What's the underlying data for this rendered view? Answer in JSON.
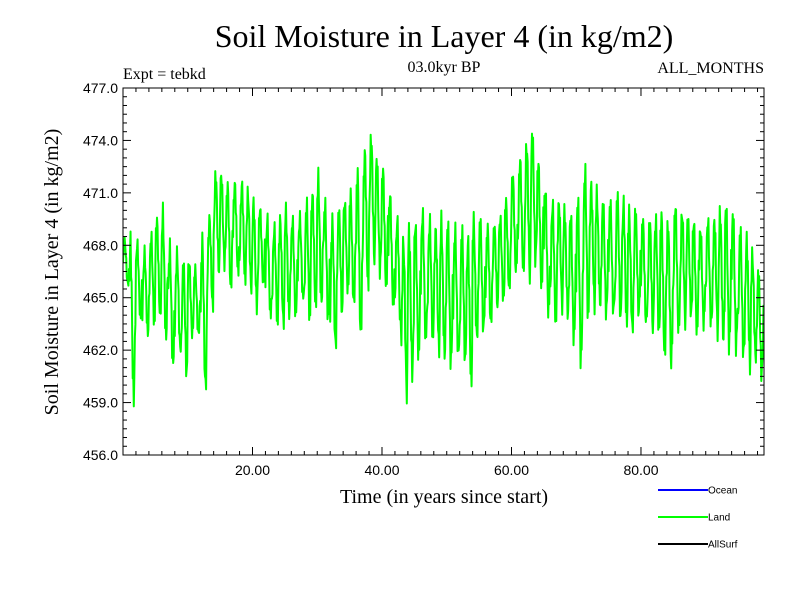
{
  "chart_data": {
    "type": "line",
    "title": "Soil Moisture in Layer 4 (in kg/m2)",
    "subtitle": "03.0kyr BP",
    "left_note": "Expt = tebkd",
    "right_note": "ALL_MONTHS",
    "xlabel": "Time (in years since start)",
    "ylabel": "Soil Moisture in Layer 4 (in kg/m2)",
    "xlim": [
      0.0,
      99.0
    ],
    "ylim": [
      456.0,
      477.0
    ],
    "x_ticks": [
      20,
      40,
      60,
      80
    ],
    "x_tick_labels": [
      "20.00",
      "40.00",
      "60.00",
      "80.00"
    ],
    "y_ticks": [
      456,
      459,
      462,
      465,
      468,
      471,
      474,
      477
    ],
    "y_tick_labels": [
      "456.0",
      "459.0",
      "462.0",
      "465.0",
      "468.0",
      "471.0",
      "474.0",
      "477.0"
    ],
    "legend_position": "bottom-right",
    "legend": [
      {
        "name": "Ocean",
        "color": "#0000ff"
      },
      {
        "name": "Land",
        "color": "#00ff00"
      },
      {
        "name": "AllSurf",
        "color": "#000000"
      }
    ],
    "series": [
      {
        "name": "Land",
        "color": "#00ff00",
        "note": "monthly series; values below are approximate yearly [min, max] envelope",
        "yearly_min": [
          465.5,
          458.5,
          463.5,
          462.5,
          463.0,
          463.5,
          462.0,
          460.5,
          461.5,
          460.0,
          462.5,
          462.5,
          459.0,
          464.0,
          466.0,
          466.5,
          465.0,
          466.0,
          465.5,
          465.0,
          464.0,
          465.5,
          463.5,
          463.0,
          463.0,
          463.5,
          463.5,
          464.5,
          463.0,
          464.0,
          464.0,
          463.0,
          461.5,
          463.5,
          465.0,
          464.0,
          462.0,
          465.0,
          466.5,
          466.0,
          465.0,
          464.0,
          463.0,
          458.8,
          460.0,
          461.0,
          462.0,
          462.0,
          461.5,
          461.0,
          460.5,
          461.0,
          460.5,
          459.5,
          462.0,
          462.5,
          463.0,
          464.0,
          464.5,
          465.0,
          466.0,
          466.0,
          465.5,
          466.5,
          465.0,
          463.5,
          463.0,
          464.0,
          463.5,
          462.0,
          460.5,
          463.0,
          464.0,
          464.0,
          463.5,
          463.5,
          463.0,
          463.0,
          462.5,
          463.5,
          463.0,
          462.5,
          462.5,
          461.0,
          460.5,
          462.5,
          463.0,
          463.5,
          462.5,
          463.0,
          463.0,
          462.5,
          462.0,
          461.5,
          461.5,
          461.0,
          460.5,
          461.0,
          460.0
        ],
        "yearly_max": [
          468.5,
          469.0,
          468.5,
          468.0,
          469.0,
          470.0,
          470.5,
          468.5,
          468.0,
          467.5,
          467.5,
          467.0,
          469.0,
          470.0,
          472.5,
          472.5,
          472.0,
          472.0,
          472.0,
          471.5,
          471.0,
          470.5,
          470.0,
          469.5,
          470.0,
          470.5,
          470.0,
          470.0,
          471.0,
          471.5,
          472.5,
          471.0,
          470.0,
          470.5,
          471.0,
          471.5,
          473.0,
          474.0,
          474.8,
          473.5,
          473.0,
          471.5,
          470.0,
          469.0,
          469.5,
          470.0,
          470.5,
          470.0,
          469.5,
          470.0,
          470.0,
          469.5,
          469.5,
          469.0,
          470.0,
          470.0,
          469.5,
          469.5,
          470.0,
          471.0,
          472.5,
          473.5,
          474.5,
          475.0,
          473.5,
          472.0,
          471.0,
          471.0,
          470.5,
          470.5,
          471.5,
          473.0,
          472.0,
          471.5,
          471.0,
          471.0,
          471.5,
          471.0,
          470.5,
          470.5,
          470.0,
          470.0,
          470.0,
          470.5,
          470.0,
          471.0,
          470.5,
          470.0,
          470.0,
          469.5,
          470.0,
          470.0,
          470.5,
          471.0,
          470.5,
          469.5,
          469.0,
          468.0,
          467.0
        ]
      }
    ]
  }
}
